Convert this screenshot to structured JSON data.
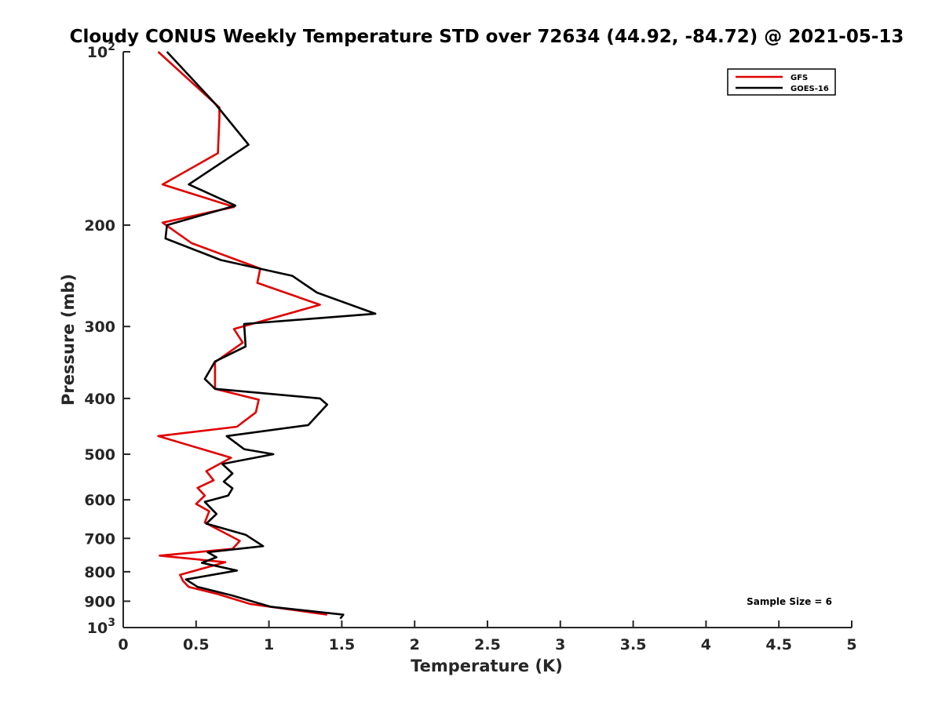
{
  "chart_data": {
    "type": "line",
    "title": "Cloudy CONUS Weekly Temperature STD over 72634 (44.92, -84.72) @ 2021-05-13",
    "xlabel": "Temperature (K)",
    "ylabel": "Pressure (mb)",
    "xlim": [
      0,
      5
    ],
    "ylim": [
      100,
      1000
    ],
    "y_scale": "log",
    "y_reversed": true,
    "grid": false,
    "legend_position": "top-right",
    "x_ticks": [
      0,
      0.5,
      1,
      1.5,
      2,
      2.5,
      3,
      3.5,
      4,
      4.5,
      5
    ],
    "x_tick_labels": [
      "0",
      "0.5",
      "1",
      "1.5",
      "2",
      "2.5",
      "3",
      "3.5",
      "4",
      "4.5",
      "5"
    ],
    "y_ticks": [
      100,
      200,
      300,
      400,
      500,
      600,
      700,
      800,
      900,
      1000
    ],
    "y_tick_labels": [
      "10^2",
      "200",
      "300",
      "400",
      "500",
      "600",
      "700",
      "800",
      "900",
      "10^3"
    ],
    "series": [
      {
        "name": "GFS",
        "color": "#e00000",
        "x": [
          0.24,
          0.66,
          0.66,
          0.65,
          0.27,
          0.76,
          0.27,
          0.47,
          0.94,
          0.92,
          1.35,
          0.76,
          0.82,
          0.63,
          0.63,
          0.93,
          0.91,
          0.78,
          0.24,
          0.74,
          0.57,
          0.62,
          0.51,
          0.56,
          0.5,
          0.59,
          0.56,
          0.8,
          0.75,
          0.25,
          0.7,
          0.39,
          0.41,
          0.45,
          0.65,
          0.87,
          1.4
        ],
        "y": [
          100,
          125,
          130,
          150,
          170,
          186,
          198,
          215,
          238,
          252,
          275,
          303,
          320,
          346,
          385,
          402,
          423,
          448,
          465,
          507,
          535,
          555,
          572,
          590,
          610,
          628,
          657,
          707,
          730,
          750,
          770,
          810,
          830,
          850,
          875,
          910,
          950
        ]
      },
      {
        "name": "GOES-16",
        "color": "#000000",
        "x": [
          0.3,
          0.63,
          0.86,
          0.45,
          0.77,
          0.3,
          0.29,
          0.67,
          1.16,
          1.33,
          1.73,
          0.83,
          0.84,
          0.63,
          0.56,
          0.63,
          1.35,
          1.4,
          1.27,
          0.71,
          0.83,
          1.03,
          0.68,
          0.75,
          0.69,
          0.75,
          0.72,
          0.56,
          0.64,
          0.57,
          0.84,
          0.96,
          0.58,
          0.64,
          0.54,
          0.78,
          0.43,
          0.51,
          0.75,
          1.01,
          1.51,
          1.49
        ],
        "y": [
          100,
          123,
          145,
          170,
          185,
          200,
          211,
          230,
          245,
          262,
          285,
          297,
          325,
          345,
          370,
          385,
          400,
          410,
          445,
          465,
          490,
          500,
          520,
          540,
          558,
          573,
          590,
          605,
          635,
          660,
          690,
          722,
          740,
          755,
          772,
          796,
          825,
          850,
          880,
          920,
          950,
          965
        ]
      }
    ],
    "annotation": "Sample Size = 6"
  }
}
